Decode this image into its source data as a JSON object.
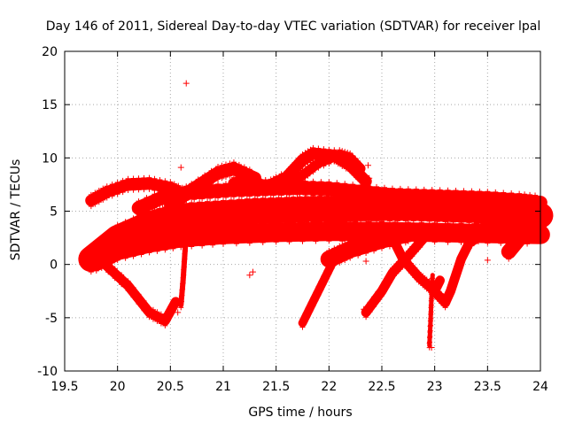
{
  "chart_data": {
    "type": "scatter",
    "title": "Day 146 of 2011, Sidereal Day-to-day VTEC variation (SDTVAR) for receiver lpal",
    "xlabel": "GPS time / hours",
    "ylabel": "SDTVAR / TECUs",
    "xlim": [
      19.5,
      24
    ],
    "ylim": [
      -10,
      20
    ],
    "x_ticks": [
      19.5,
      20,
      20.5,
      21,
      21.5,
      22,
      22.5,
      23,
      23.5,
      24
    ],
    "x_tick_labels": [
      "19.5",
      "20",
      "20.5",
      "21",
      "21.5",
      "22",
      "22.5",
      "23",
      "23.5",
      "24"
    ],
    "y_ticks": [
      -10,
      -5,
      0,
      5,
      10,
      15,
      20
    ],
    "y_tick_labels": [
      "-10",
      "-5",
      "0",
      "5",
      "10",
      "15",
      "20"
    ],
    "grid": true,
    "legend": "none",
    "marker": "+",
    "color": "#ff0000",
    "tracks": [
      {
        "x": [
          19.75,
          19.9,
          20.1,
          20.3,
          20.5,
          20.65
        ],
        "y": [
          6.0,
          6.8,
          7.5,
          7.6,
          7.2,
          6.5
        ],
        "w": 1.1
      },
      {
        "x": [
          19.75,
          20.0,
          20.3,
          20.5,
          20.7,
          21.0,
          21.3,
          21.6,
          21.85,
          22.1,
          22.3,
          22.5,
          22.8,
          23.1,
          23.4,
          23.7,
          24.0
        ],
        "y": [
          0.5,
          2.5,
          3.8,
          4.3,
          4.6,
          4.8,
          5.0,
          5.1,
          5.2,
          5.2,
          5.3,
          5.3,
          5.3,
          5.2,
          5.1,
          4.9,
          4.6
        ],
        "w": 2.4
      },
      {
        "x": [
          19.8,
          20.0,
          20.3,
          20.6,
          21.0,
          21.5,
          22.0,
          22.5,
          23.0,
          23.5,
          24.0
        ],
        "y": [
          0.3,
          1.3,
          2.0,
          2.5,
          2.8,
          3.0,
          3.1,
          3.1,
          3.0,
          2.9,
          2.8
        ],
        "w": 1.8
      },
      {
        "x": [
          19.85,
          20.1,
          20.3,
          20.45,
          20.55
        ],
        "y": [
          0.3,
          -2.0,
          -4.5,
          -5.3,
          -3.5
        ],
        "w": 0.9
      },
      {
        "x": [
          20.2,
          20.5,
          20.8,
          21.1,
          21.4,
          21.7,
          22.0,
          22.3,
          22.6,
          22.9,
          23.2,
          23.5,
          23.8,
          24.0
        ],
        "y": [
          5.3,
          6.6,
          6.8,
          7.0,
          7.1,
          7.2,
          7.1,
          6.8,
          6.5,
          6.4,
          6.3,
          6.2,
          6.0,
          5.8
        ],
        "w": 1.3
      },
      {
        "x": [
          20.5,
          20.7,
          20.95,
          21.1,
          21.3
        ],
        "y": [
          5.5,
          7.0,
          8.6,
          9.0,
          8.1
        ],
        "w": 1.2
      },
      {
        "x": [
          21.1,
          21.4,
          21.6,
          21.75,
          21.85,
          22.05,
          22.2,
          22.35
        ],
        "y": [
          7.6,
          7.2,
          8.2,
          9.8,
          10.4,
          10.2,
          9.3,
          7.8
        ],
        "w": 1.1
      },
      {
        "x": [
          21.15,
          21.4,
          21.7,
          21.9,
          22.1,
          22.2,
          22.3
        ],
        "y": [
          8.0,
          7.5,
          8.0,
          9.5,
          10.3,
          10.0,
          9.0
        ],
        "w": 0.9
      },
      {
        "x": [
          21.75,
          21.85,
          21.95,
          22.05
        ],
        "y": [
          -5.5,
          -3.5,
          -1.5,
          0.5
        ],
        "w": 0.8
      },
      {
        "x": [
          22.0,
          22.2,
          22.5,
          22.8
        ],
        "y": [
          0.5,
          1.4,
          2.3,
          3.0
        ],
        "w": 1.6
      },
      {
        "x": [
          22.35,
          22.5,
          22.6,
          22.75,
          22.9
        ],
        "y": [
          -4.5,
          -2.5,
          -0.8,
          0.8,
          2.5
        ],
        "w": 0.9
      },
      {
        "x": [
          22.6,
          22.7,
          22.85,
          23.0,
          23.05
        ],
        "y": [
          2.5,
          0.5,
          -1.2,
          -2.5,
          -1.5
        ],
        "w": 0.9
      },
      {
        "x": [
          22.95,
          23.1,
          23.15,
          23.25,
          23.4
        ],
        "y": [
          -2.0,
          -3.6,
          -2.5,
          0.5,
          3.5
        ],
        "w": 0.9
      },
      {
        "x": [
          23.35,
          23.6,
          23.8,
          24.0
        ],
        "y": [
          2.5,
          4.0,
          4.2,
          4.0
        ],
        "w": 1.5
      },
      {
        "x": [
          23.7,
          23.85,
          24.0
        ],
        "y": [
          1.2,
          3.0,
          4.8
        ],
        "w": 1.4
      },
      {
        "x": [
          20.6,
          20.62,
          20.64,
          20.66
        ],
        "y": [
          -3.8,
          -1.5,
          1.5,
          4.5
        ],
        "w": 0.5
      },
      {
        "x": [
          22.95,
          22.96,
          22.97,
          22.98
        ],
        "y": [
          -7.6,
          -5.5,
          -3.0,
          -1.0
        ],
        "w": 0.4
      }
    ],
    "outliers": [
      [
        20.65,
        17.0
      ],
      [
        20.6,
        9.1
      ],
      [
        22.37,
        9.3
      ],
      [
        22.38,
        8.1
      ],
      [
        22.35,
        0.3
      ],
      [
        23.5,
        0.4
      ],
      [
        21.25,
        -1.0
      ],
      [
        21.28,
        -0.7
      ],
      [
        20.57,
        -4.5
      ],
      [
        20.6,
        -3.5
      ],
      [
        22.33,
        -4.2
      ],
      [
        22.97,
        -7.8
      ]
    ]
  }
}
